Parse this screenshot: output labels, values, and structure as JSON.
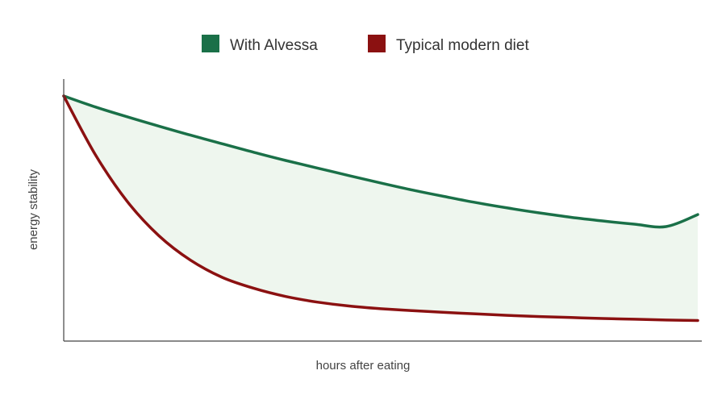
{
  "chart_data": {
    "type": "area",
    "xlabel": "hours after eating",
    "ylabel": "energy stability",
    "xlim": [
      0,
      100
    ],
    "ylim": [
      0,
      100
    ],
    "grid": false,
    "legend_position": "top-center",
    "show_tick_labels": false,
    "fill_between_series": true,
    "fill_color": "#eef6ee",
    "x": [
      0,
      5,
      10,
      15,
      20,
      25,
      30,
      35,
      40,
      45,
      50,
      55,
      60,
      65,
      70,
      75,
      80,
      85,
      90,
      95,
      100
    ],
    "series": [
      {
        "name": "With Alvessa",
        "color": "#1a7048",
        "values": [
          100,
          95.5,
          91.5,
          87.7,
          84,
          80.5,
          77,
          73.7,
          70.6,
          67.5,
          64.5,
          61.6,
          59,
          56.5,
          54.3,
          52.3,
          50.5,
          49,
          47.7,
          46.7,
          51.6
        ]
      },
      {
        "name": "Typical modern diet",
        "color": "#8b1111",
        "values": [
          100,
          76,
          57,
          43,
          33,
          26,
          21.5,
          18.2,
          15.9,
          14.3,
          13.2,
          12.4,
          11.7,
          11.1,
          10.5,
          10.0,
          9.6,
          9.2,
          8.9,
          8.6,
          8.4
        ]
      }
    ]
  },
  "colors": {
    "axis": "#444444",
    "background": "#ffffff"
  }
}
